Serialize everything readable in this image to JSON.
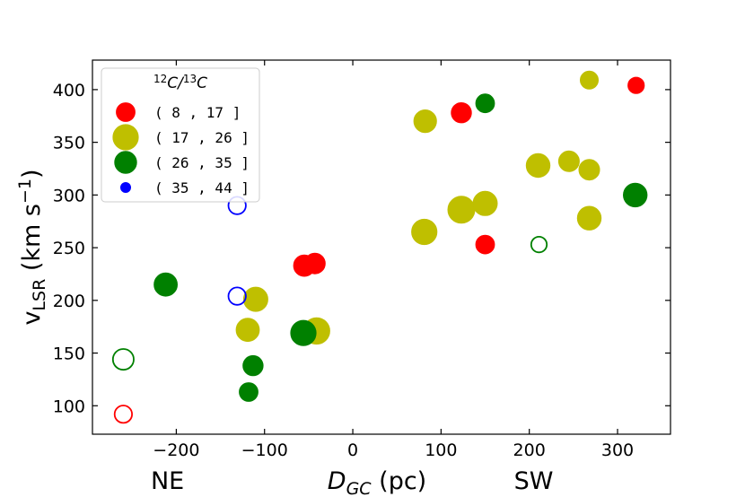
{
  "chart_data": {
    "type": "scatter",
    "xlabel": "D_GC (pc)",
    "xlabel_parts": {
      "main": "D",
      "sub": "GC",
      "unit": " (pc)"
    },
    "ylabel": "v_LSR (km s^-1)",
    "ylabel_parts": {
      "main": "v",
      "sub": "LSR",
      "unit": " (km s",
      "sup": "−1",
      "close": ")"
    },
    "xlim": [
      -295,
      360
    ],
    "ylim": [
      73,
      428
    ],
    "xticks": [
      -200,
      -100,
      0,
      100,
      200,
      300
    ],
    "xtick_labels": [
      "−200",
      "−100",
      "0",
      "100",
      "200",
      "300"
    ],
    "yticks": [
      100,
      150,
      200,
      250,
      300,
      350,
      400
    ],
    "ytick_labels": [
      "100",
      "150",
      "200",
      "250",
      "300",
      "350",
      "400"
    ],
    "side_labels": {
      "left": "NE",
      "right": "SW"
    },
    "legend": {
      "title": "12C/13C",
      "title_parts": {
        "sup1": "12",
        "c1": "C/",
        "sup2": "13",
        "c2": "C"
      },
      "placement": "top-left",
      "entries": [
        {
          "label": "( 8 , 17 ]",
          "color": "#ff0000",
          "ratio": 12
        },
        {
          "label": "( 17 , 26 ]",
          "color": "#bfbf00",
          "ratio": 23
        },
        {
          "label": "( 26 , 35 ]",
          "color": "#008000",
          "ratio": 17
        },
        {
          "label": "( 35 , 44 ]",
          "color": "#0000ff",
          "ratio": 3
        }
      ]
    },
    "series": [
      {
        "name": "( 8 , 17 ]",
        "color": "#ff0000",
        "points": [
          {
            "x": -260,
            "y": 92,
            "ratio": 10,
            "filled": false
          },
          {
            "x": -55,
            "y": 233,
            "ratio": 16,
            "filled": true
          },
          {
            "x": -43,
            "y": 235,
            "ratio": 15,
            "filled": true
          },
          {
            "x": 123,
            "y": 378,
            "ratio": 14,
            "filled": true
          },
          {
            "x": 150,
            "y": 253,
            "ratio": 12,
            "filled": true
          },
          {
            "x": 321,
            "y": 404,
            "ratio": 9,
            "filled": true
          }
        ]
      },
      {
        "name": "( 17 , 26 ]",
        "color": "#bfbf00",
        "points": [
          {
            "x": -110,
            "y": 201,
            "ratio": 21,
            "filled": true
          },
          {
            "x": -119,
            "y": 172,
            "ratio": 19,
            "filled": true
          },
          {
            "x": -41,
            "y": 171,
            "ratio": 25,
            "filled": true
          },
          {
            "x": 82,
            "y": 370,
            "ratio": 18,
            "filled": true
          },
          {
            "x": 81,
            "y": 265,
            "ratio": 23,
            "filled": true
          },
          {
            "x": 123,
            "y": 286,
            "ratio": 26,
            "filled": true
          },
          {
            "x": 150,
            "y": 292,
            "ratio": 21,
            "filled": true
          },
          {
            "x": 210,
            "y": 328,
            "ratio": 20,
            "filled": true
          },
          {
            "x": 245,
            "y": 332,
            "ratio": 15,
            "filled": true
          },
          {
            "x": 268,
            "y": 409,
            "ratio": 11,
            "filled": true
          },
          {
            "x": 268,
            "y": 324,
            "ratio": 15,
            "filled": true
          },
          {
            "x": 268,
            "y": 278,
            "ratio": 20,
            "filled": true
          }
        ]
      },
      {
        "name": "( 26 , 35 ]",
        "color": "#008000",
        "points": [
          {
            "x": -260,
            "y": 144,
            "ratio": 15,
            "filled": false
          },
          {
            "x": -212,
            "y": 215,
            "ratio": 19,
            "filled": true
          },
          {
            "x": -113,
            "y": 138,
            "ratio": 14,
            "filled": true
          },
          {
            "x": -118,
            "y": 113,
            "ratio": 12,
            "filled": true
          },
          {
            "x": -56,
            "y": 169,
            "ratio": 23,
            "filled": true
          },
          {
            "x": 150,
            "y": 387,
            "ratio": 12,
            "filled": true
          },
          {
            "x": 211,
            "y": 253,
            "ratio": 8,
            "filled": false
          },
          {
            "x": 320,
            "y": 300,
            "ratio": 20,
            "filled": true
          }
        ]
      },
      {
        "name": "( 35 , 44 ]",
        "color": "#0000ff",
        "points": [
          {
            "x": -131,
            "y": 290,
            "ratio": 10,
            "filled": false
          },
          {
            "x": -131,
            "y": 204,
            "ratio": 10,
            "filled": false
          }
        ]
      }
    ]
  }
}
